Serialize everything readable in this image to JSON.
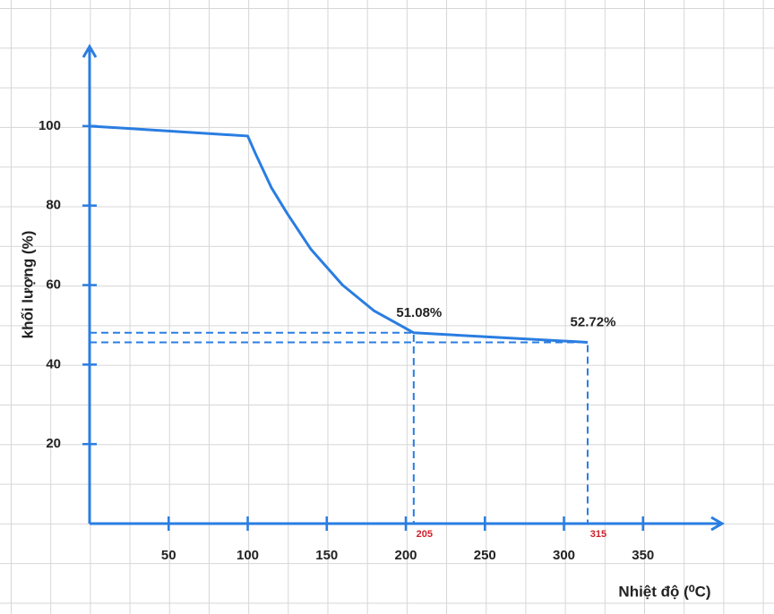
{
  "chart_data": {
    "type": "line",
    "x_label": "Nhiệt độ (⁰C)",
    "y_label": "khối lượng (%)",
    "xlim": [
      0,
      400
    ],
    "ylim": [
      0,
      120
    ],
    "xticks": [
      50,
      100,
      150,
      200,
      250,
      300,
      350
    ],
    "yticks": [
      20,
      40,
      60,
      80,
      100
    ],
    "color": "#2a7de1",
    "x": [
      0,
      100,
      105,
      115,
      125,
      140,
      160,
      180,
      205,
      315
    ],
    "values": [
      100,
      97.5,
      93,
      84.5,
      78,
      69,
      60,
      53.5,
      48,
      45.6
    ],
    "annotations": [
      {
        "label": "51.08%",
        "x": 205,
        "y": 48
      },
      {
        "label": "52.72%",
        "x": 315,
        "y": 45.6
      }
    ],
    "marker_color": "#d0202a"
  }
}
